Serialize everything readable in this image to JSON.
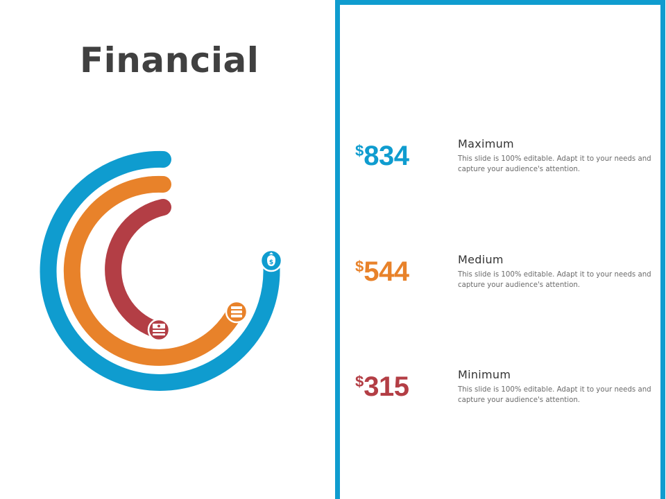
{
  "title": "Financial",
  "colors": {
    "blue": "#0f9ccf",
    "orange": "#e8822a",
    "red": "#b33e45",
    "title_text": "#404040"
  },
  "stats": [
    {
      "currency": "$",
      "amount": "834",
      "label": "Maximum",
      "description": "This slide is 100% editable. Adapt it to your needs and capture your audience's attention.",
      "color": "#0f9ccf",
      "icon": "money-bag-icon"
    },
    {
      "currency": "$",
      "amount": "544",
      "label": "Medium",
      "description": "This slide is 100% editable. Adapt it to your needs and capture your audience's attention.",
      "color": "#e8822a",
      "icon": "coin-stack-icon"
    },
    {
      "currency": "$",
      "amount": "315",
      "label": "Minimum",
      "description": "This slide is 100% editable. Adapt it to your needs and capture your audience's attention.",
      "color": "#b33e45",
      "icon": "cash-stack-icon"
    }
  ]
}
